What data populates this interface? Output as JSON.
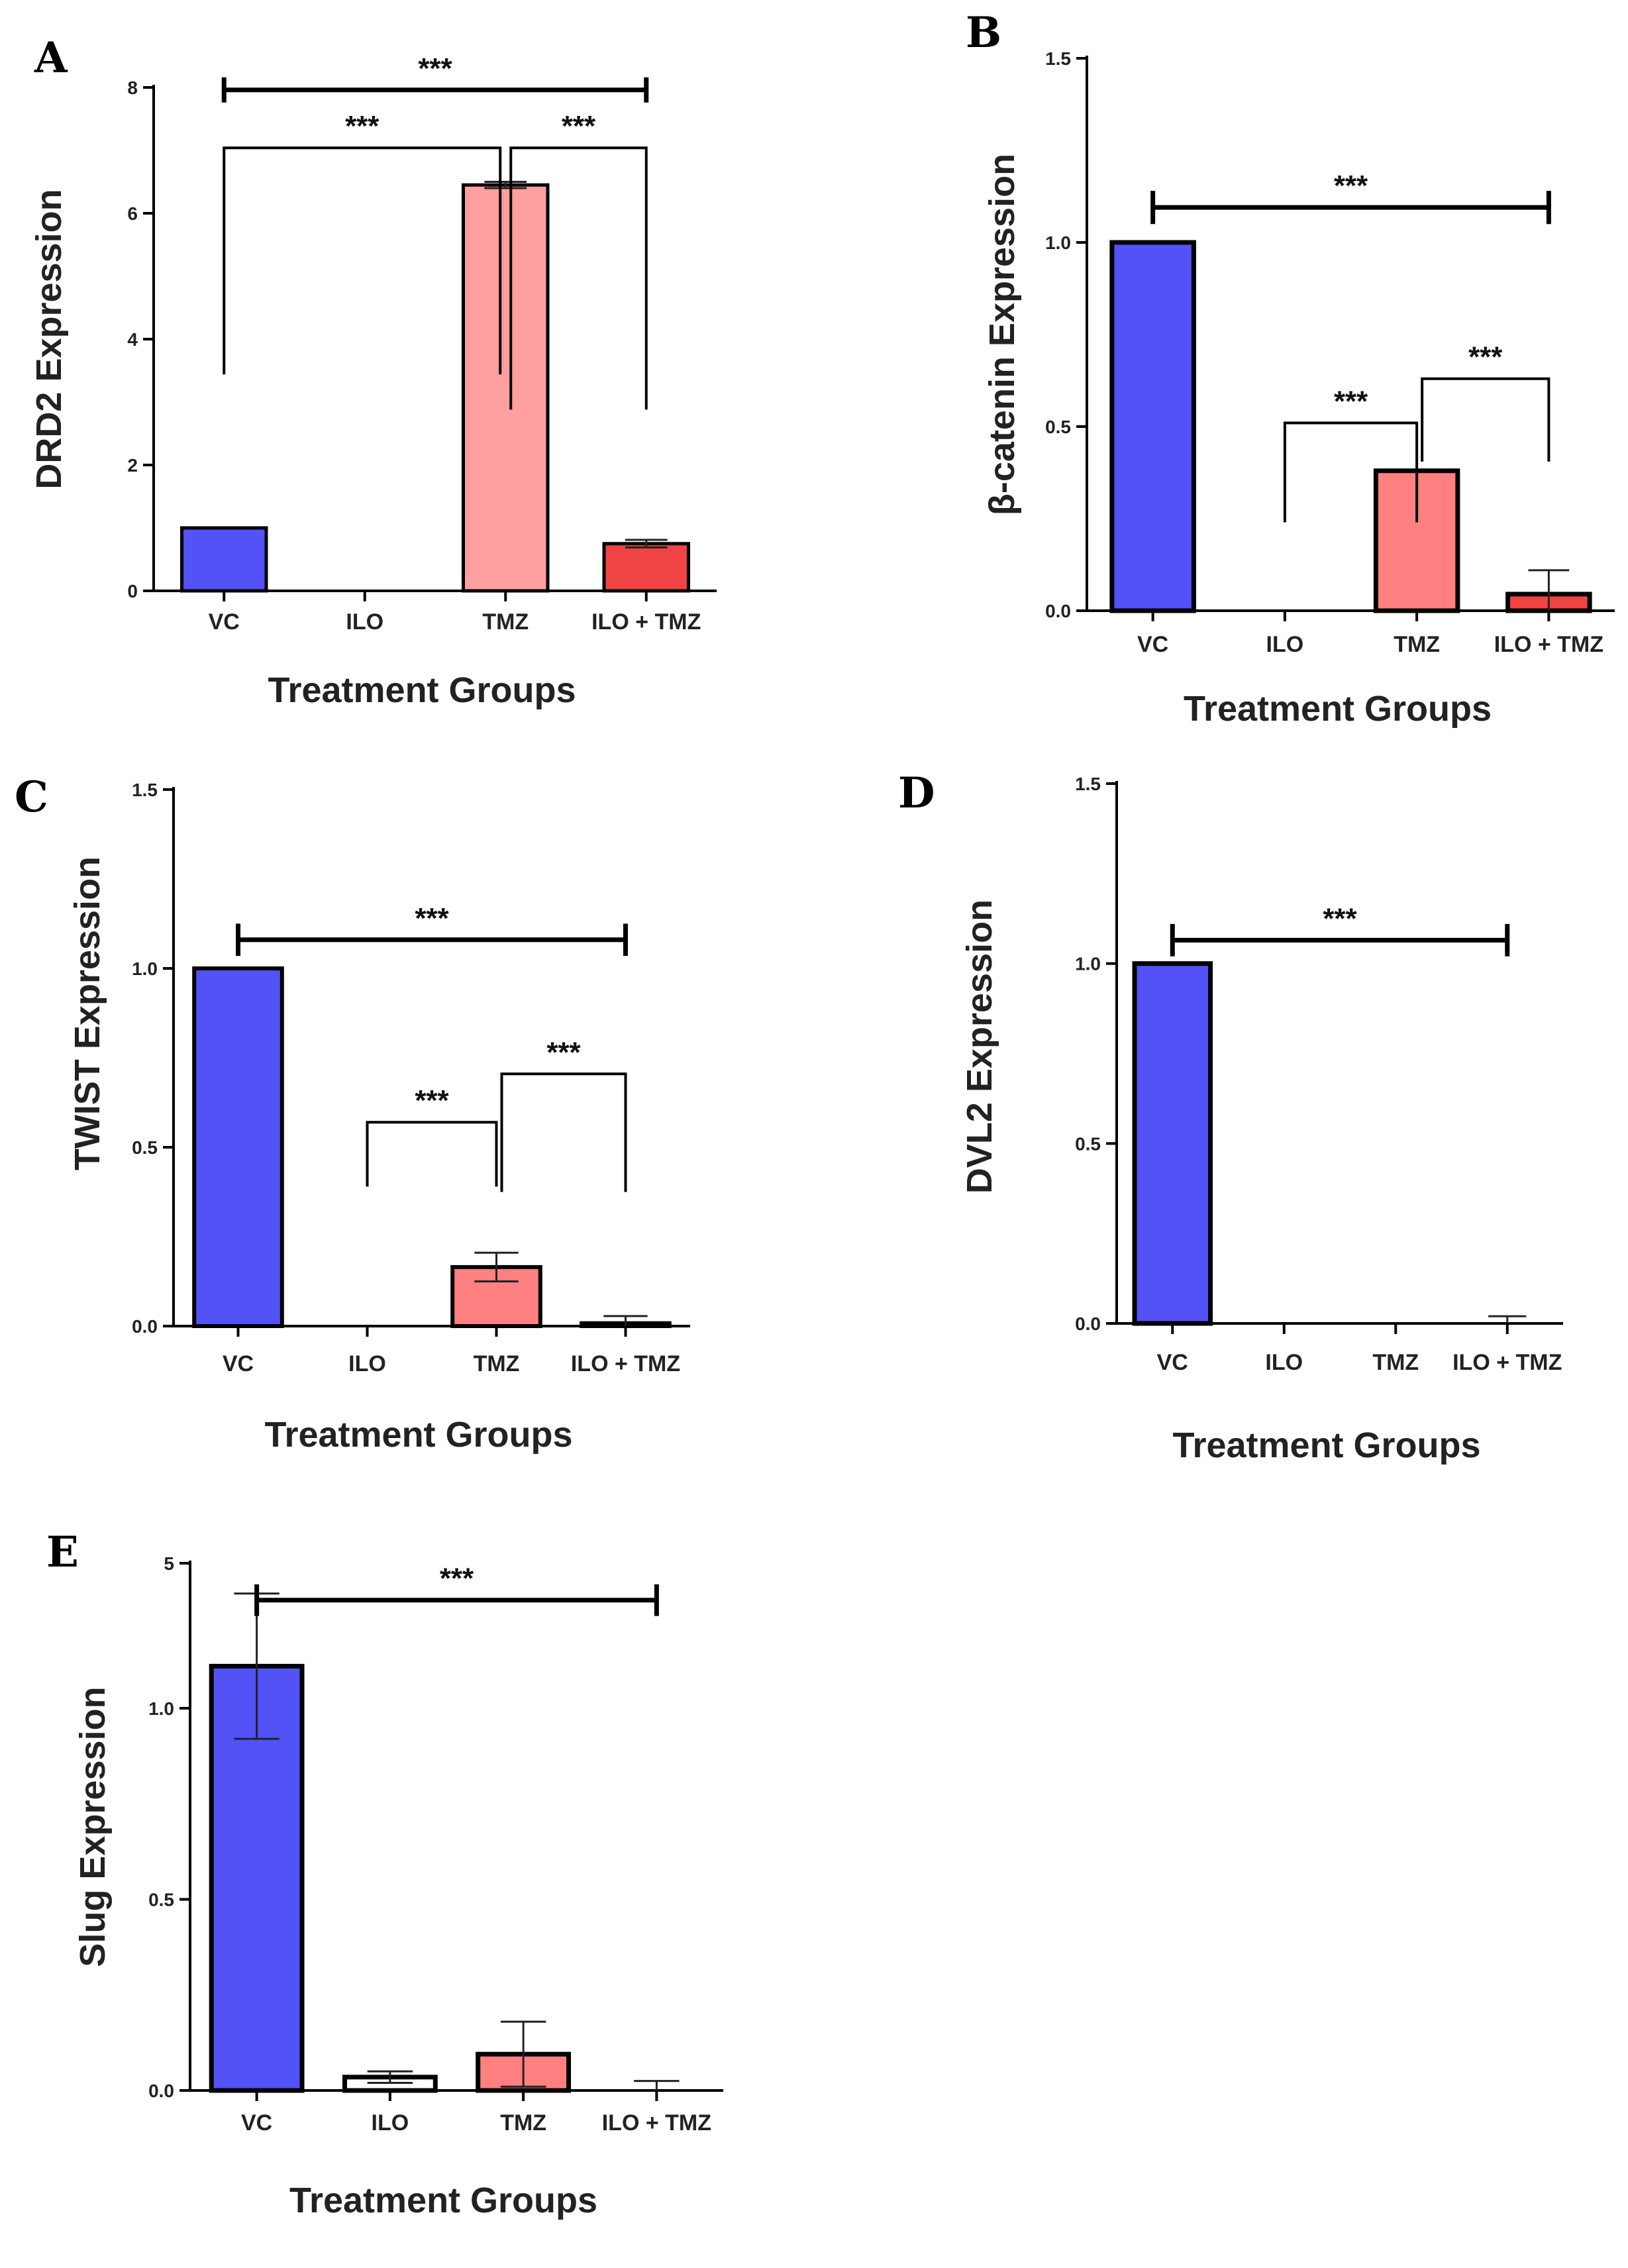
{
  "colors": {
    "vc": "#5252f7",
    "ilo": "#ffffff",
    "tmz_light": "#ff9f9f",
    "tmz": "#ff8080",
    "ilo_tmz": "#f04444",
    "axis": "#000000"
  },
  "chart_data": [
    {
      "panel": "A",
      "type": "bar",
      "title": "",
      "xlabel": "Treatment Groups",
      "ylabel": "DRD2   Expression",
      "categories": [
        "VC",
        "ILO",
        "TMZ",
        "ILO + TMZ"
      ],
      "values": [
        1.0,
        0.0,
        6.45,
        0.75
      ],
      "errors": [
        0.0,
        0.0,
        0.05,
        0.06
      ],
      "ylim": [
        0,
        8
      ],
      "yticks": [
        0,
        2,
        4,
        6,
        8
      ],
      "ytick_labels": [
        "0",
        "2",
        "4",
        "6",
        "8"
      ],
      "significance": [
        {
          "from": 0,
          "to": 3,
          "label": "***",
          "style": "flat"
        },
        {
          "from": 0,
          "to": 2,
          "label": "***",
          "style": "bracket"
        },
        {
          "from": 2,
          "to": 3,
          "label": "***",
          "style": "bracket"
        }
      ]
    },
    {
      "panel": "B",
      "type": "bar",
      "title": "",
      "xlabel": "Treatment Groups",
      "ylabel": "β-catenin Expression",
      "categories": [
        "VC",
        "ILO",
        "TMZ",
        "ILO + TMZ"
      ],
      "values": [
        1.0,
        0.0,
        0.38,
        0.045
      ],
      "errors": [
        0.0,
        0.0,
        0.0,
        0.065
      ],
      "ylim": [
        0,
        1.5
      ],
      "yticks": [
        0,
        0.5,
        1.0,
        1.5
      ],
      "ytick_labels": [
        "0.0",
        "0.5",
        "1.0",
        "1.5"
      ],
      "significance": [
        {
          "from": 0,
          "to": 3,
          "label": "***",
          "style": "flat"
        },
        {
          "from": 1,
          "to": 2,
          "label": "***",
          "style": "bracket"
        },
        {
          "from": 2,
          "to": 3,
          "label": "***",
          "style": "bracket"
        }
      ]
    },
    {
      "panel": "C",
      "type": "bar",
      "title": "",
      "xlabel": "Treatment Groups",
      "ylabel": "TWIST Expression",
      "categories": [
        "VC",
        "ILO",
        "TMZ",
        "ILO + TMZ"
      ],
      "values": [
        1.0,
        0.0,
        0.165,
        0.008
      ],
      "errors": [
        0.0,
        0.0,
        0.04,
        0.02
      ],
      "ylim": [
        0,
        1.5
      ],
      "yticks": [
        0,
        0.5,
        1.0,
        1.5
      ],
      "ytick_labels": [
        "0.0",
        "0.5",
        "1.0",
        "1.5"
      ],
      "significance": [
        {
          "from": 0,
          "to": 3,
          "label": "***",
          "style": "flat"
        },
        {
          "from": 1,
          "to": 2,
          "label": "***",
          "style": "bracket"
        },
        {
          "from": 2,
          "to": 3,
          "label": "***",
          "style": "bracket"
        }
      ]
    },
    {
      "panel": "D",
      "type": "bar",
      "title": "",
      "xlabel": "Treatment Groups",
      "ylabel": "DVL2 Expression",
      "categories": [
        "VC",
        "ILO",
        "TMZ",
        "ILO + TMZ"
      ],
      "values": [
        1.0,
        0.0,
        0.0,
        0.0
      ],
      "errors": [
        0.0,
        0.0,
        0.0,
        0.02
      ],
      "ylim": [
        0,
        1.5
      ],
      "yticks": [
        0,
        0.5,
        1.0,
        1.5
      ],
      "ytick_labels": [
        "0.0",
        "0.5",
        "1.0",
        "1.5"
      ],
      "significance": [
        {
          "from": 0,
          "to": 3,
          "label": "***",
          "style": "flat"
        }
      ]
    },
    {
      "panel": "E",
      "type": "bar",
      "title": "",
      "xlabel": "Treatment Groups",
      "ylabel": "Slug Expression",
      "categories": [
        "VC",
        "ILO",
        "TMZ",
        "ILO + TMZ"
      ],
      "values": [
        1.11,
        0.035,
        0.095,
        0.0
      ],
      "errors": [
        0.19,
        0.015,
        0.085,
        0.025
      ],
      "ylim": [
        0,
        5
      ],
      "yticks": [
        0,
        0.5,
        1.0,
        5
      ],
      "ytick_labels": [
        "0.0",
        "0.5",
        "1.0",
        "5"
      ],
      "axis_break": true,
      "significance": [
        {
          "from": 0,
          "to": 3,
          "label": "***",
          "style": "flat"
        }
      ]
    }
  ]
}
